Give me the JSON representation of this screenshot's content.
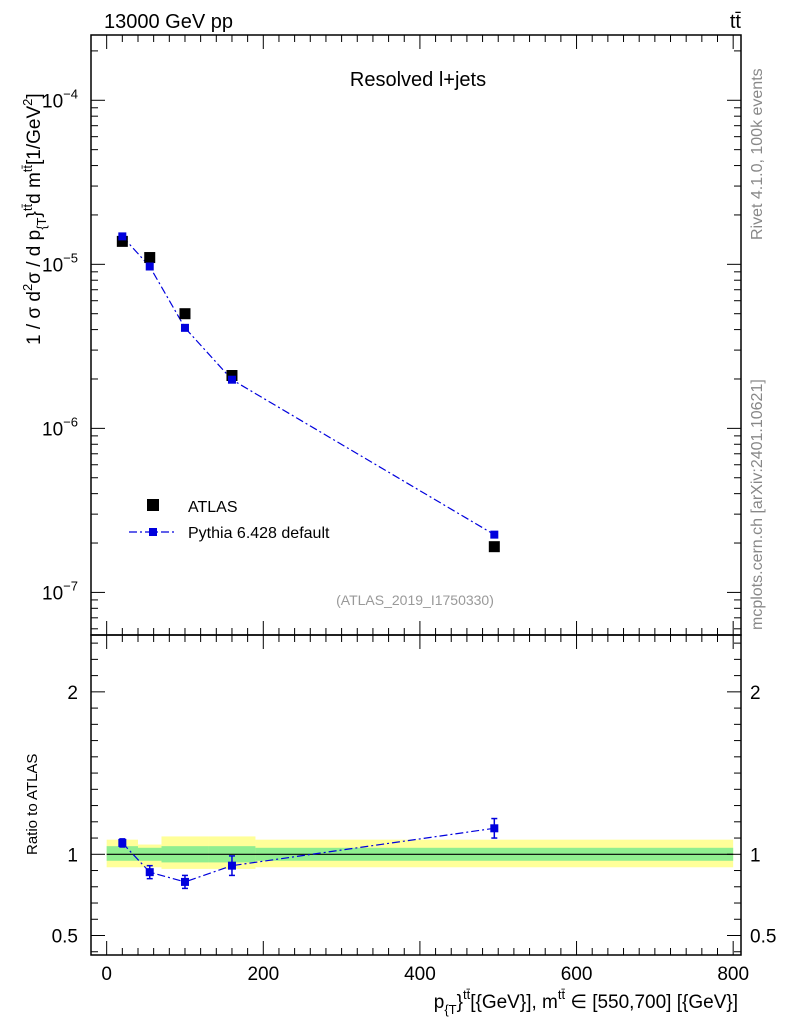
{
  "header": {
    "energy_label": "13000 GeV pp",
    "process_label": "tt̄"
  },
  "side_labels": {
    "rivet": "Rivet 4.1.0,  100k events",
    "mcplots": "mcplots.cern.ch [arXiv:2401.10621]"
  },
  "chart_data": [
    {
      "type": "scatter",
      "title": "Resolved l+jets",
      "analysis_tag": "(ATLAS_2019_I1750330)",
      "ylabel": "1 / σ d²σ / d p_{T}^{tt̄} d m^{tt̄} [1/GeV²]",
      "ylabel_parts": {
        "a": "1 / σ d",
        "a_sup": "2",
        "b": "σ / d p",
        "b_sub": "{T",
        "b_mid": "}",
        "b_sup": "tt̄",
        "c": "d m",
        "c_sup": "tt̄",
        "d": "[1/GeV",
        "d_sup": "2",
        "e": "]"
      },
      "yscale": "log",
      "ylim": [
        5.5e-08,
        0.00025
      ],
      "xlim": [
        -20,
        810
      ],
      "ytick_labels": [
        {
          "value": 1e-07,
          "base": "10",
          "exp": "−7"
        },
        {
          "value": 1e-06,
          "base": "10",
          "exp": "−6"
        },
        {
          "value": 1e-05,
          "base": "10",
          "exp": "−5"
        },
        {
          "value": 0.0001,
          "base": "10",
          "exp": "−4"
        }
      ],
      "legend_position": "bottom-left",
      "series": [
        {
          "name": "ATLAS",
          "marker": "square",
          "color": "#000000",
          "x": [
            20,
            55,
            100,
            160,
            495
          ],
          "y": [
            1.38e-05,
            1.1e-05,
            5e-06,
            2.1e-06,
            1.9e-07
          ]
        },
        {
          "name": "Pythia 6.428 default",
          "marker": "square-line",
          "linestyle": "dash-dot",
          "color": "#0000dd",
          "x": [
            20,
            55,
            100,
            160,
            495
          ],
          "y": [
            1.48e-05,
            9.7e-06,
            4.1e-06,
            1.98e-06,
            2.25e-07
          ],
          "yerr": [
            6e-07,
            4e-07,
            1.5e-07,
            8e-08,
            1e-08
          ]
        }
      ]
    },
    {
      "type": "scatter",
      "ylabel": "Ratio to ATLAS",
      "xlabel": "p_{T}^{tt̄}[{GeV}], m^{tt̄} ∈ [550,700] [{GeV}]",
      "xlabel_parts": {
        "a": "p",
        "a_sub": "{T",
        "a_mid": "}",
        "a_sup": "tt̄",
        "b": "[{GeV}], m",
        "b_sup": "tt̄",
        "c": " ∈ [550,700] [{GeV}]"
      },
      "ylim": [
        0.38,
        2.35
      ],
      "xlim": [
        -20,
        810
      ],
      "yticks": [
        0.5,
        1,
        2
      ],
      "ytick_labels": [
        "0.5",
        "1",
        "2"
      ],
      "xticks": [
        0,
        200,
        400,
        600,
        800
      ],
      "xtick_labels": [
        "0",
        "200",
        "400",
        "600",
        "800"
      ],
      "reference_line": 1,
      "bands": {
        "colors": {
          "outer": "#ffff99",
          "inner": "#90ee90"
        },
        "bins": [
          {
            "x0": 0,
            "x1": 40,
            "outer": [
              0.92,
              1.09
            ],
            "inner": [
              0.96,
              1.05
            ]
          },
          {
            "x0": 40,
            "x1": 70,
            "outer": [
              0.92,
              1.06
            ],
            "inner": [
              0.96,
              1.04
            ]
          },
          {
            "x0": 70,
            "x1": 130,
            "outer": [
              0.91,
              1.11
            ],
            "inner": [
              0.95,
              1.05
            ]
          },
          {
            "x0": 130,
            "x1": 190,
            "outer": [
              0.91,
              1.11
            ],
            "inner": [
              0.95,
              1.05
            ]
          },
          {
            "x0": 190,
            "x1": 800,
            "outer": [
              0.92,
              1.09
            ],
            "inner": [
              0.96,
              1.04
            ]
          }
        ]
      },
      "series": [
        {
          "name": "Pythia 6.428 default",
          "color": "#0000dd",
          "linestyle": "dash-dot",
          "x": [
            20,
            55,
            100,
            160,
            495
          ],
          "y": [
            1.07,
            0.89,
            0.83,
            0.93,
            1.16
          ],
          "yerr": [
            0.025,
            0.04,
            0.04,
            0.06,
            0.06
          ]
        }
      ]
    }
  ]
}
